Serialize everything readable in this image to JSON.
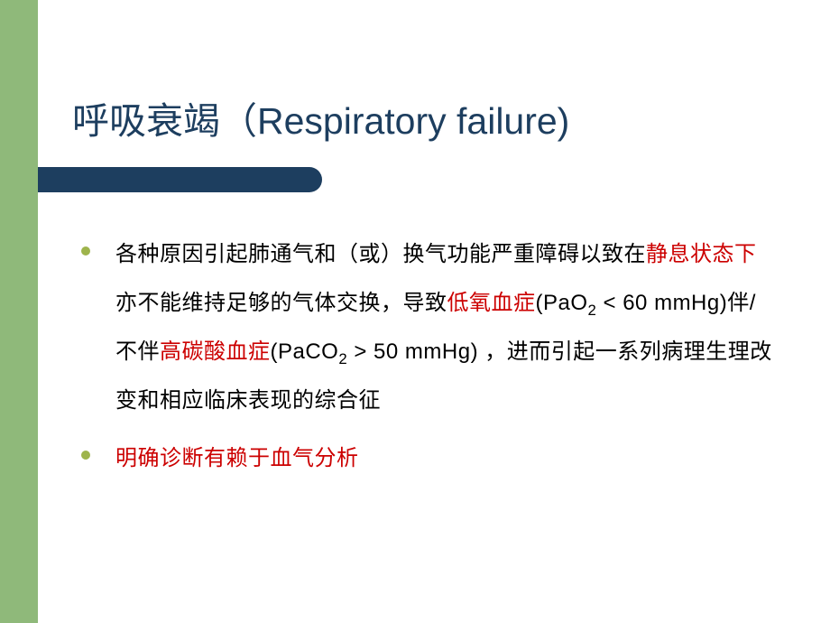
{
  "colors": {
    "accent_green": "#8fb97a",
    "title_color": "#1d3e5f",
    "underline_color": "#1d3e5f",
    "bullet_color": "#9eb44c",
    "body_text": "#000000",
    "emphasis_red": "#cc0000",
    "background": "#ffffff"
  },
  "layout": {
    "slide_width": 920,
    "slide_height": 690,
    "left_bar_width": 42,
    "underline_width": 315,
    "underline_height": 28,
    "title_fontsize": 41,
    "body_fontsize": 24
  },
  "title": "呼吸衰竭（Respiratory failure)",
  "bullets": [
    {
      "segments": [
        {
          "text": "各种原因引起肺通气和（或）换气功能严重障碍以致在",
          "color": "body"
        },
        {
          "text": "静息状态下",
          "color": "red"
        },
        {
          "text": "亦不能维持足够的气体交换，导致",
          "color": "body"
        },
        {
          "text": "低氧血症",
          "color": "red"
        },
        {
          "text": "(PaO",
          "color": "body"
        },
        {
          "text": "2",
          "color": "body",
          "sub": true
        },
        {
          "text": " < 60 mmHg)伴/不伴",
          "color": "body"
        },
        {
          "text": "高碳酸血症",
          "color": "red"
        },
        {
          "text": "(PaCO",
          "color": "body"
        },
        {
          "text": "2",
          "color": "body",
          "sub": true
        },
        {
          "text": " > 50 mmHg) ，进而引起一系列病理生理改变和相应临床表现的综合征",
          "color": "body"
        }
      ]
    },
    {
      "segments": [
        {
          "text": "明确诊断有赖于血气分析",
          "color": "red"
        }
      ]
    }
  ]
}
